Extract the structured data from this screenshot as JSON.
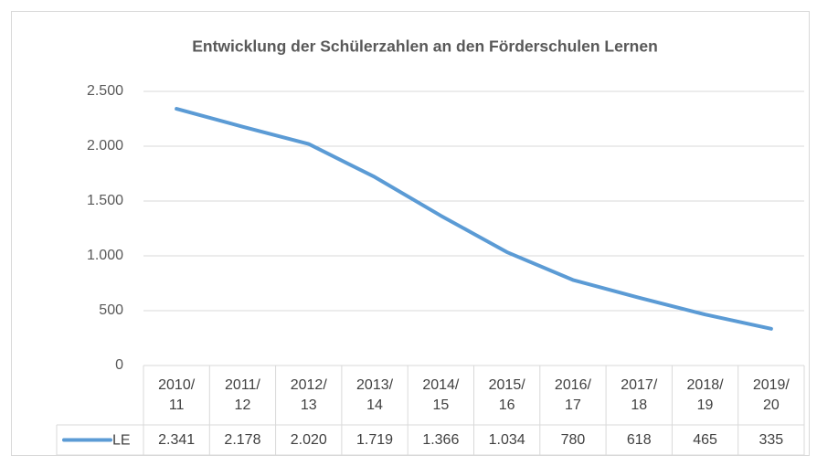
{
  "chart_data": {
    "type": "line",
    "title": "Entwicklung der Schülerzahlen an den Förderschulen Lernen",
    "categories": [
      "2010/\n11",
      "2011/\n12",
      "2012/\n13",
      "2013/\n14",
      "2014/\n15",
      "2015/\n16",
      "2016/\n17",
      "2017/\n18",
      "2018/\n19",
      "2019/\n20"
    ],
    "series": [
      {
        "name": "LE",
        "color": "#5b9bd5",
        "values": [
          2341,
          2178,
          2020,
          1719,
          1366,
          1034,
          780,
          618,
          465,
          335
        ],
        "value_labels": [
          "2.341",
          "2.178",
          "2.020",
          "1.719",
          "1.366",
          "1.034",
          "780",
          "618",
          "465",
          "335"
        ]
      }
    ],
    "ylim": [
      0,
      2500
    ],
    "yticks": [
      0,
      500,
      {
        "value": 1000,
        "label": "1.000"
      },
      {
        "value": 1500,
        "label": "1.500"
      },
      {
        "value": 2000,
        "label": "2.000"
      },
      {
        "value": 2500,
        "label": "2.500"
      }
    ],
    "grid": true
  }
}
